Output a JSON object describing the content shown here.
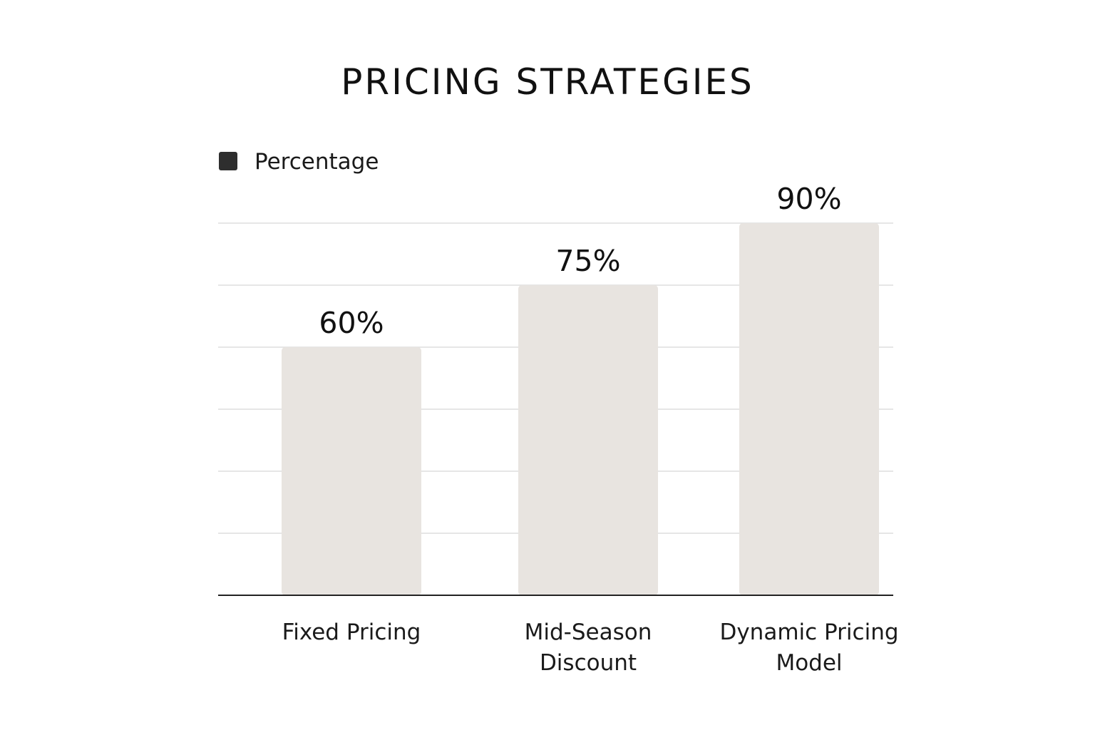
{
  "chart_data": {
    "type": "bar",
    "title": "PRICING STRATEGIES",
    "categories": [
      [
        "Fixed Pricing"
      ],
      [
        "Mid-Season",
        "Discount"
      ],
      [
        "Dynamic Pricing",
        "Model"
      ]
    ],
    "series": [
      {
        "name": "Percentage",
        "values": [
          60,
          75,
          90
        ],
        "value_labels": [
          "60%",
          "75%",
          "90%"
        ]
      }
    ],
    "ylim": [
      0,
      100
    ],
    "grid": true,
    "legend_position": "top-left",
    "colors": {
      "bar": "#e8e4e0",
      "legend_swatch": "#2e2e2e",
      "grid": "#dddddd",
      "axis": "#222222"
    }
  }
}
